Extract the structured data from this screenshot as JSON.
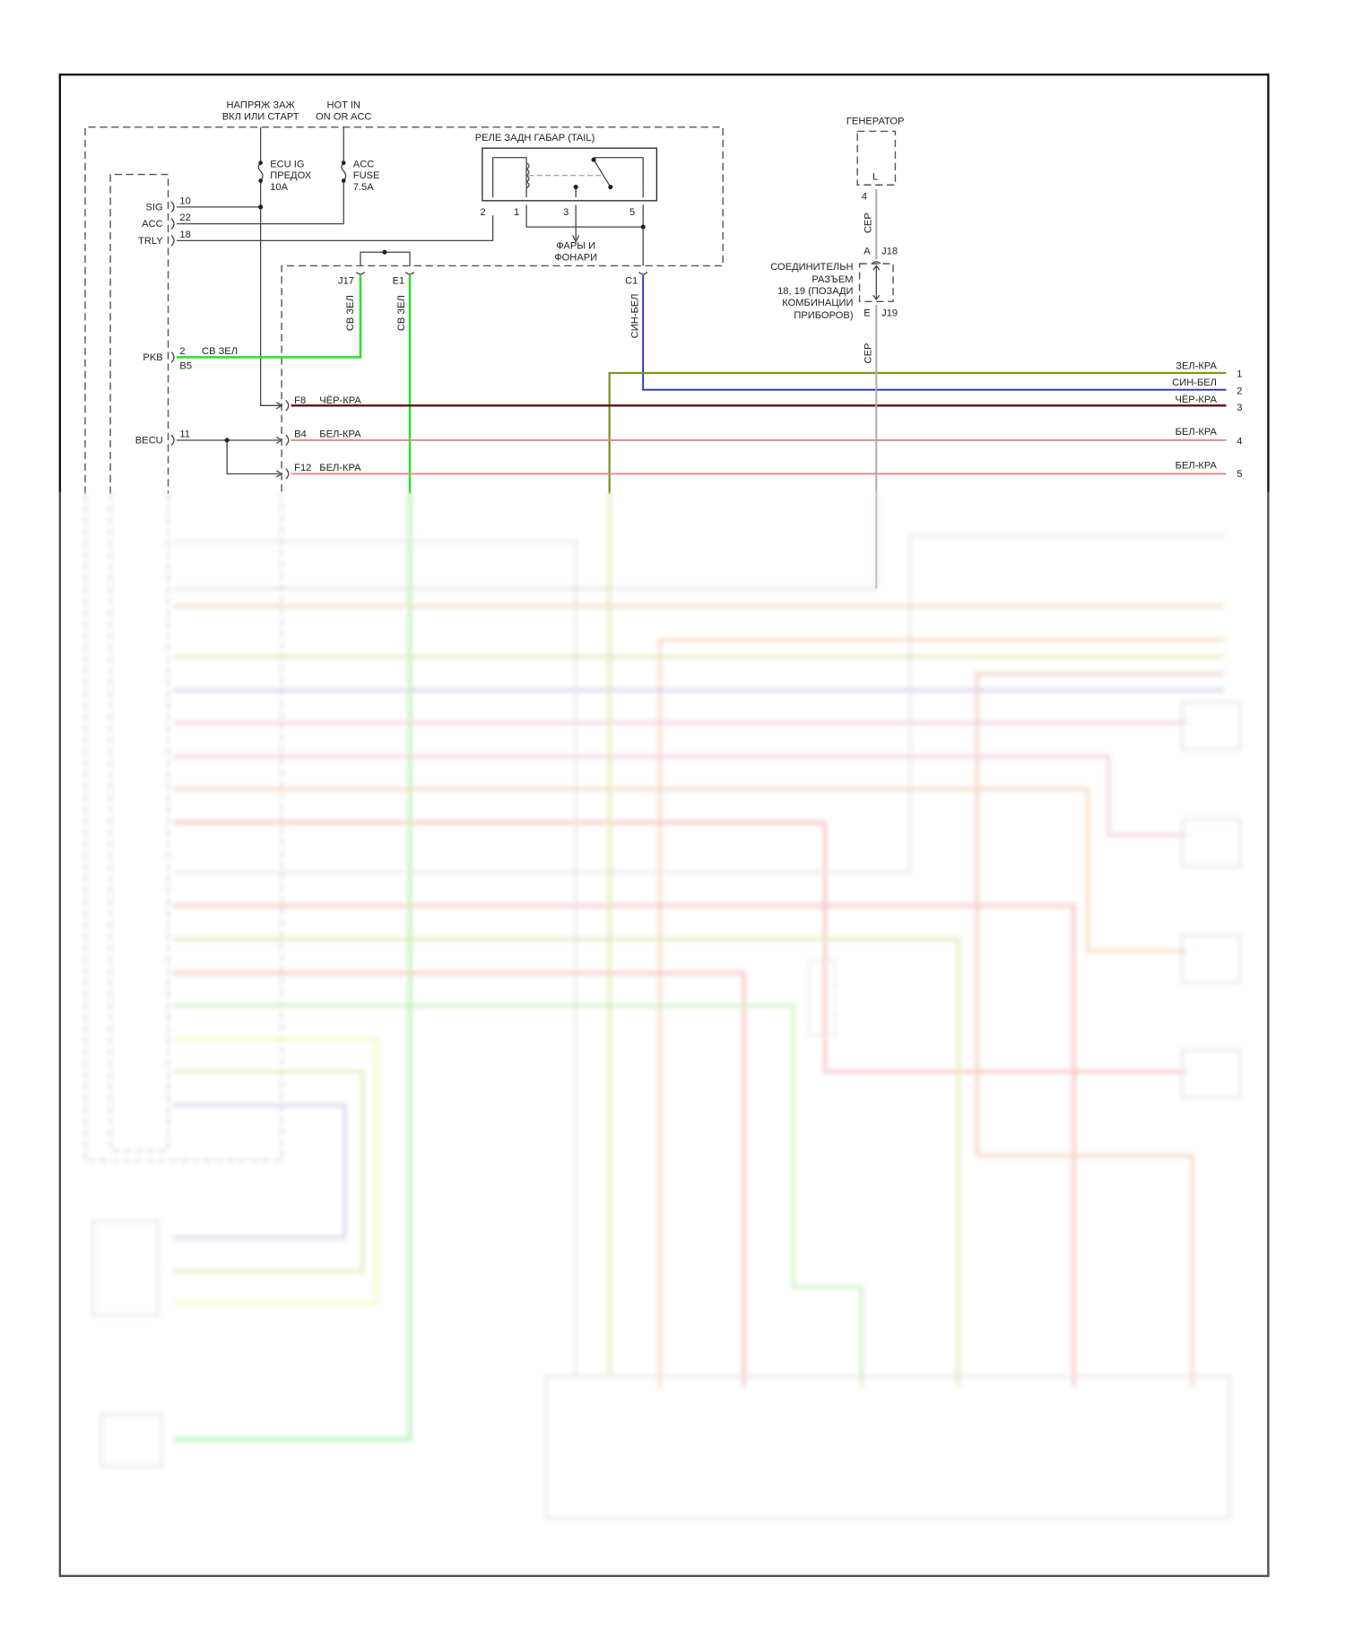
{
  "power": {
    "ign_line1": "НАПРЯЖ ЗАЖ",
    "ign_line2": "ВКЛ ИЛИ СТАРТ",
    "acc_line1": "HOT IN",
    "acc_line2": "ON OR ACC"
  },
  "fuses": {
    "ecu_ig": [
      "ECU IG",
      "ПРЕДОХ",
      "10A"
    ],
    "acc": [
      "ACC",
      "FUSE",
      "7.5A"
    ]
  },
  "relay": {
    "title": "РЕЛЕ ЗАДН ГАБАР (TAIL)",
    "pins": [
      "2",
      "1",
      "3",
      "5"
    ],
    "output_line1": "ФАРЫ И",
    "output_line2": "ФОНАРИ"
  },
  "ecu_pins": [
    {
      "name": "SIG",
      "pin": "10"
    },
    {
      "name": "ACC",
      "pin": "22"
    },
    {
      "name": "TRLY",
      "pin": "18"
    },
    {
      "name": "PKB",
      "pin": "2",
      "connector": "B5",
      "wire": "СВ ЗЕЛ"
    },
    {
      "name": "BECU",
      "pin": "11"
    }
  ],
  "junction": {
    "j17": "J17",
    "e1": "E1",
    "c1": "C1",
    "j17_wire": "СВ ЗЕЛ",
    "e1_wire": "СВ ЗЕЛ",
    "c1_wire": "СИН-БЕЛ",
    "f8": "F8",
    "f8_wire": "ЧЁР-КРА",
    "b4": "B4",
    "b4_wire": "БЕЛ-КРА",
    "f12": "F12",
    "f12_wire": "БЕЛ-КРА"
  },
  "generator": {
    "title": "ГЕНЕРАТОР",
    "terminal": "L",
    "pin": "4",
    "wire_top": "СЕР",
    "wire_bottom": "СЕР",
    "j18_pin": "A",
    "j18": "J18",
    "j19_pin": "E",
    "j19": "J19",
    "connector_label": [
      "СОЕДИНИТЕЛЬН",
      "РАЗЪЕМ",
      "18, 19 (ПОЗАДИ",
      "КОМБИНАЦИИ",
      "ПРИБОРОВ)"
    ]
  },
  "outputs": [
    {
      "label": "ЗЕЛ-КРА",
      "num": "1",
      "color": "#7a9a1e"
    },
    {
      "label": "СИН-БЕЛ",
      "num": "2",
      "color": "#2233bb"
    },
    {
      "label": "ЧЁР-КРА",
      "num": "3",
      "color": "#5a1010"
    },
    {
      "label": "БЕЛ-КРА",
      "num": "4",
      "color": "#e08a8a"
    },
    {
      "label": "БЕЛ-КРА",
      "num": "5",
      "color": "#e08a8a"
    }
  ],
  "colors": {
    "bright_green": "#33dd33",
    "gray_wire": "#aaaaaa",
    "frame": "#111111"
  }
}
